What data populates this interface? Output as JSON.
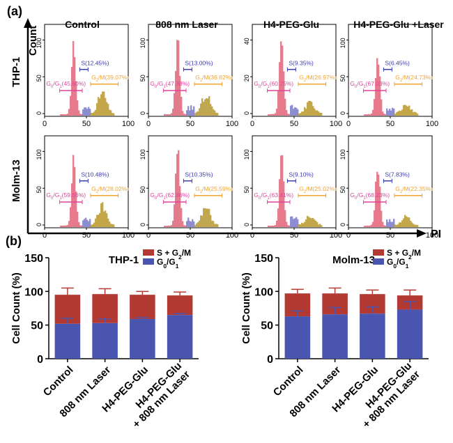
{
  "panel_a": {
    "label": "(a)",
    "y_axis_label": "Count",
    "x_axis_label": "PI",
    "column_titles": [
      "Control",
      "808 nm Laser",
      "H4-PEG-Glu",
      "H4-PEG-Glu +Laser"
    ],
    "row_labels": [
      "THP-1",
      "Molm-13"
    ],
    "x_ticks": [
      "0",
      "50",
      "100"
    ],
    "y_ticks_by_column": [
      [
        "0",
        "50",
        "100"
      ],
      [
        "0",
        "50",
        "100"
      ],
      [
        "0",
        "20",
        "40"
      ],
      [
        "0",
        "50",
        "100"
      ]
    ],
    "molm_y_ticks": [
      "0",
      "50",
      "100"
    ],
    "gate_labels": [
      [
        {
          "s": "S(12.45%)",
          "g0": "G0/G1(45.60%)",
          "g2": "G2/M(39.07%)"
        },
        {
          "s": "S(13.00%)",
          "g0": "G0/G1(47.38%)",
          "g2": "G2/M(36.62%)"
        },
        {
          "s": "S(9.35%)",
          "g0": "G0/G1(60.75%)",
          "g2": "G2/M(26.97%)"
        },
        {
          "s": "S(6.45%)",
          "g0": "G0/G1(67.03%)",
          "g2": "G2/M(24.73%)"
        }
      ],
      [
        {
          "s": "S(10.48%)",
          "g0": "G0/G1(59.66%)",
          "g2": "G2/M(28.02%)"
        },
        {
          "s": "S(10.35%)",
          "g0": "G0/G1(62.86%)",
          "g2": "G2/M(25.59%)"
        },
        {
          "s": "S(9.10%)",
          "g0": "G0/G1(63.41%)",
          "g2": "G2/M(25.02%)"
        },
        {
          "s": "S(7.83%)",
          "g0": "G0/G1(68.23%)",
          "g2": "G2/M(22.35%)"
        }
      ]
    ]
  },
  "panel_b": {
    "label": "(b)",
    "legend": {
      "sg2": "S + G2/M",
      "g0": "G0/G1"
    }
  },
  "colors": {
    "sg2": "#b23a33",
    "g0": "#4a55b0",
    "hist_g0": "#e0697d",
    "hist_s": "#7d7cc8",
    "hist_g2": "#b99a33",
    "gate_g0": "#e0429a",
    "gate_s": "#3a3ab0",
    "gate_g2": "#f2a430"
  },
  "chart_data": [
    {
      "type": "bar",
      "stacked": true,
      "title": "THP-1",
      "ylabel": "Cell Count (%)",
      "xlabel": "",
      "ylim": [
        0,
        150
      ],
      "yticks": [
        0,
        50,
        100,
        150
      ],
      "categories": [
        "Control",
        "808 nm Laser",
        "H4-PEG-Glu",
        "H4-PEG-Glu\n+ 808 nm Laser"
      ],
      "series": [
        {
          "name": "G0/G1",
          "values": [
            52,
            53,
            59,
            65
          ],
          "errors": [
            8,
            6,
            2,
            2
          ]
        },
        {
          "name": "S + G2/M",
          "values": [
            43,
            43,
            36,
            29
          ],
          "errors": [
            10,
            8,
            5,
            5
          ]
        }
      ],
      "legend": "top-right"
    },
    {
      "type": "bar",
      "stacked": true,
      "title": "Molm-13",
      "ylabel": "Cell Count (%)",
      "xlabel": "",
      "ylim": [
        0,
        150
      ],
      "yticks": [
        0,
        50,
        100,
        150
      ],
      "categories": [
        "Control",
        "808 nm Laser",
        "H4-PEG-Glu",
        "H4-PEG-Glu\n+ 808 nm Laser"
      ],
      "series": [
        {
          "name": "G0/G1",
          "values": [
            63,
            66,
            67,
            73
          ],
          "errors": [
            8,
            10,
            10,
            12
          ]
        },
        {
          "name": "S + G2/M",
          "values": [
            34,
            31,
            29,
            21
          ],
          "errors": [
            6,
            8,
            6,
            8
          ]
        }
      ],
      "legend": "top-right"
    }
  ]
}
